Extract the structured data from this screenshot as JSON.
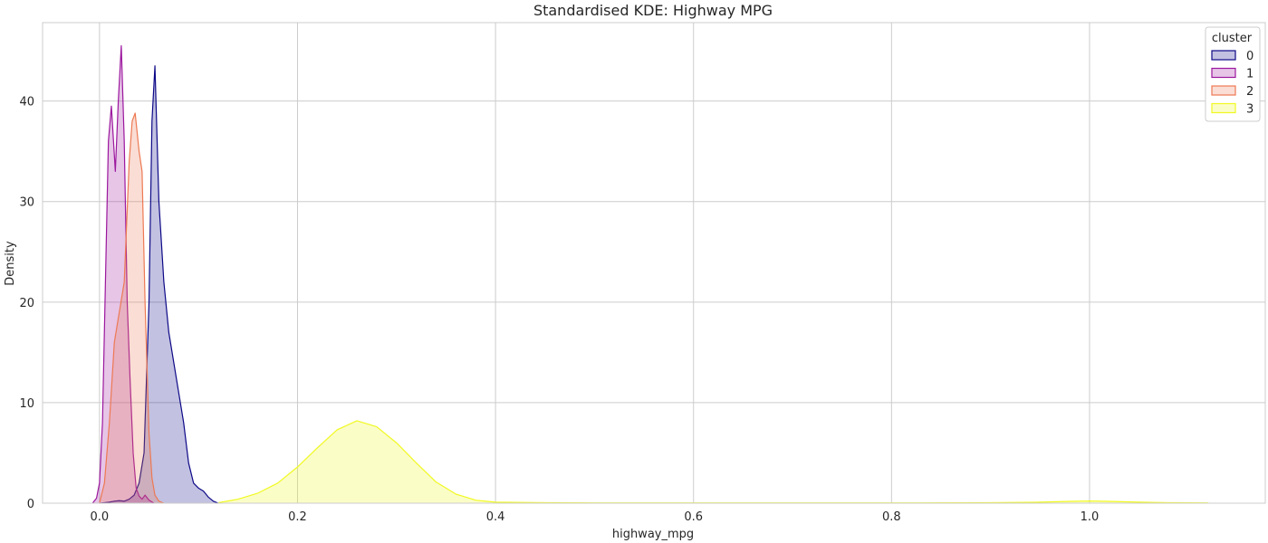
{
  "chart_data": {
    "type": "area",
    "title": "Standardised KDE: Highway MPG",
    "xlabel": "highway_mpg",
    "ylabel": "Density",
    "xlim": [
      -0.0575,
      1.1775
    ],
    "ylim": [
      0,
      47.8
    ],
    "xticks": [
      0.0,
      0.2,
      0.4,
      0.6,
      0.8,
      1.0
    ],
    "xtick_labels": [
      "0.0",
      "0.2",
      "0.4",
      "0.6",
      "0.8",
      "1.0"
    ],
    "yticks": [
      0,
      10,
      20,
      30,
      40
    ],
    "ytick_labels": [
      "0",
      "10",
      "20",
      "30",
      "40"
    ],
    "grid": true,
    "legend": {
      "title": "cluster",
      "placement": "top-right"
    },
    "series": [
      {
        "name": "0",
        "color": "#0d0887",
        "fill": "#0d0887",
        "x": [
          0.0,
          0.005,
          0.01,
          0.015,
          0.02,
          0.025,
          0.03,
          0.035,
          0.04,
          0.045,
          0.05,
          0.053,
          0.056,
          0.06,
          0.065,
          0.07,
          0.075,
          0.08,
          0.085,
          0.09,
          0.095,
          0.1,
          0.105,
          0.11,
          0.115,
          0.12
        ],
        "y": [
          0.0,
          0.05,
          0.1,
          0.2,
          0.25,
          0.2,
          0.4,
          0.8,
          2.0,
          5.0,
          20.0,
          38.0,
          43.5,
          30.0,
          22.0,
          17.0,
          14.0,
          11.0,
          8.0,
          4.0,
          2.0,
          1.5,
          1.2,
          0.6,
          0.2,
          0.0
        ]
      },
      {
        "name": "1",
        "color": "#9c179e",
        "fill": "#9c179e",
        "x": [
          -0.007,
          -0.003,
          0.0,
          0.003,
          0.006,
          0.009,
          0.012,
          0.016,
          0.019,
          0.022,
          0.025,
          0.028,
          0.031,
          0.034,
          0.037,
          0.04,
          0.043,
          0.046,
          0.05,
          0.055
        ],
        "y": [
          0.0,
          0.5,
          2.0,
          8.0,
          22.0,
          36.0,
          39.5,
          33.0,
          40.0,
          45.5,
          36.0,
          20.0,
          12.0,
          5.0,
          1.5,
          0.7,
          0.4,
          0.8,
          0.3,
          0.0
        ]
      },
      {
        "name": "2",
        "color": "#ed7953",
        "fill": "#ed7953",
        "x": [
          0.0,
          0.005,
          0.01,
          0.015,
          0.02,
          0.025,
          0.03,
          0.033,
          0.036,
          0.04,
          0.043,
          0.046,
          0.05,
          0.053,
          0.056,
          0.06,
          0.065
        ],
        "y": [
          0.0,
          2.0,
          8.0,
          16.0,
          19.0,
          22.0,
          34.0,
          38.0,
          38.8,
          35.0,
          33.0,
          20.0,
          7.0,
          2.5,
          0.8,
          0.2,
          0.0
        ]
      },
      {
        "name": "3",
        "color": "#f0f921",
        "fill": "#f0f921",
        "x": [
          0.12,
          0.14,
          0.16,
          0.18,
          0.2,
          0.22,
          0.24,
          0.26,
          0.28,
          0.3,
          0.32,
          0.34,
          0.36,
          0.38,
          0.4,
          0.45,
          0.5,
          0.6,
          0.7,
          0.8,
          0.9,
          0.95,
          0.98,
          1.0,
          1.02,
          1.05,
          1.08,
          1.12
        ],
        "y": [
          0.05,
          0.4,
          1.0,
          2.0,
          3.6,
          5.5,
          7.3,
          8.2,
          7.6,
          6.0,
          4.0,
          2.1,
          0.9,
          0.3,
          0.1,
          0.05,
          0.02,
          0.02,
          0.02,
          0.02,
          0.05,
          0.1,
          0.18,
          0.22,
          0.18,
          0.1,
          0.05,
          0.02
        ]
      }
    ]
  }
}
